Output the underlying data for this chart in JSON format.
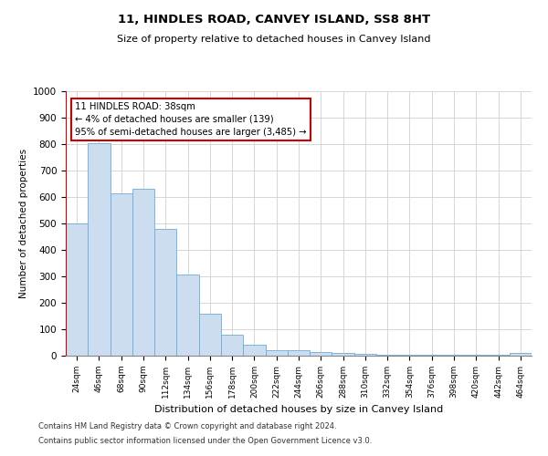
{
  "title1": "11, HINDLES ROAD, CANVEY ISLAND, SS8 8HT",
  "title2": "Size of property relative to detached houses in Canvey Island",
  "xlabel": "Distribution of detached houses by size in Canvey Island",
  "ylabel": "Number of detached properties",
  "categories": [
    "24sqm",
    "46sqm",
    "68sqm",
    "90sqm",
    "112sqm",
    "134sqm",
    "156sqm",
    "178sqm",
    "200sqm",
    "222sqm",
    "244sqm",
    "266sqm",
    "288sqm",
    "310sqm",
    "332sqm",
    "354sqm",
    "376sqm",
    "398sqm",
    "420sqm",
    "442sqm",
    "464sqm"
  ],
  "values": [
    500,
    805,
    615,
    630,
    478,
    308,
    160,
    78,
    43,
    22,
    22,
    15,
    12,
    8,
    5,
    3,
    3,
    2,
    2,
    2,
    10
  ],
  "bar_color": "#ccddf0",
  "bar_edge_color": "#6badd6",
  "marker_color": "#cc0000",
  "annotation_text": "11 HINDLES ROAD: 38sqm\n← 4% of detached houses are smaller (139)\n95% of semi-detached houses are larger (3,485) →",
  "annotation_box_color": "#ffffff",
  "annotation_box_edge": "#cc0000",
  "ylim": [
    0,
    1000
  ],
  "yticks": [
    0,
    100,
    200,
    300,
    400,
    500,
    600,
    700,
    800,
    900,
    1000
  ],
  "grid_color": "#d0d0d0",
  "bg_color": "#ffffff",
  "footnote1": "Contains HM Land Registry data © Crown copyright and database right 2024.",
  "footnote2": "Contains public sector information licensed under the Open Government Licence v3.0."
}
